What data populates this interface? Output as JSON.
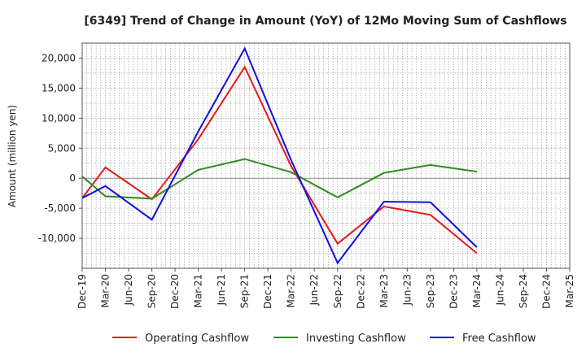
{
  "chart_data": {
    "type": "line",
    "title": "[6349]  Trend of Change in Amount (YoY) of 12Mo Moving Sum of Cashflows",
    "xlabel": "",
    "ylabel": "Amount (million yen)",
    "ylim": [
      -15000,
      22500
    ],
    "yticks": [
      -10000,
      -5000,
      0,
      5000,
      10000,
      15000,
      20000
    ],
    "ytick_labels": [
      "-10,000",
      "-5,000",
      "0",
      "5,000",
      "10,000",
      "15,000",
      "20,000"
    ],
    "categories": [
      "Dec-19",
      "Mar-20",
      "Jun-20",
      "Sep-20",
      "Dec-20",
      "Mar-21",
      "Jun-21",
      "Sep-21",
      "Dec-21",
      "Mar-22",
      "Jun-22",
      "Sep-22",
      "Dec-22",
      "Mar-23",
      "Jun-23",
      "Sep-23",
      "Dec-23",
      "Mar-24",
      "Jun-24",
      "Sep-24",
      "Dec-24",
      "Mar-25"
    ],
    "grid": true,
    "legend_position": "bottom",
    "series": [
      {
        "name": "Operating Cashflow",
        "color": "#e31a1c",
        "values": [
          -3300,
          1800,
          null,
          -3500,
          null,
          6500,
          null,
          18500,
          null,
          2000,
          null,
          -10900,
          null,
          -4700,
          null,
          -6100,
          null,
          -12500,
          null,
          null,
          null,
          null
        ]
      },
      {
        "name": "Investing Cashflow",
        "color": "#2e8b22",
        "values": [
          300,
          -3000,
          null,
          -3400,
          null,
          1400,
          null,
          3200,
          null,
          1000,
          null,
          -3200,
          null,
          900,
          null,
          2200,
          null,
          1100,
          null,
          null,
          null,
          null
        ]
      },
      {
        "name": "Free Cashflow",
        "color": "#1010dd",
        "values": [
          -3300,
          -1300,
          null,
          -6900,
          null,
          7800,
          null,
          21600,
          null,
          3000,
          null,
          -14100,
          null,
          -3900,
          null,
          -4000,
          null,
          -11500,
          null,
          null,
          null,
          null
        ]
      }
    ]
  }
}
